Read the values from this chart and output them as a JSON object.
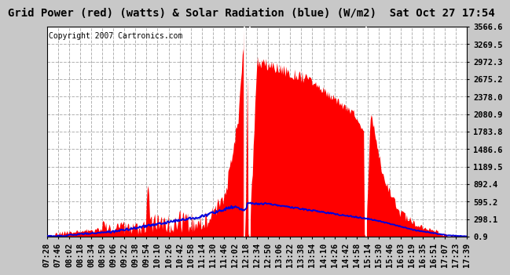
{
  "title": "Grid Power (red) (watts) & Solar Radiation (blue) (W/m2)  Sat Oct 27 17:54",
  "copyright": "Copyright 2007 Cartronics.com",
  "yticks": [
    0.9,
    298.1,
    595.2,
    892.4,
    1189.5,
    1486.6,
    1783.8,
    2080.9,
    2378.0,
    2675.2,
    2972.3,
    3269.5,
    3566.6
  ],
  "ymin": 0.9,
  "ymax": 3566.6,
  "bg_color": "#c8c8c8",
  "plot_bg_color": "#ffffff",
  "grid_color": "#aaaaaa",
  "red_color": "#ff0000",
  "blue_color": "#0000dd",
  "white_line_color": "#ffffff",
  "title_fontsize": 10,
  "copyright_fontsize": 7,
  "tick_fontsize": 7.5,
  "xtick_labels": [
    "07:28",
    "07:46",
    "08:02",
    "08:18",
    "08:34",
    "08:50",
    "09:06",
    "09:22",
    "09:38",
    "09:54",
    "10:10",
    "10:26",
    "10:42",
    "10:58",
    "11:14",
    "11:30",
    "11:46",
    "12:02",
    "12:18",
    "12:34",
    "12:50",
    "13:06",
    "13:22",
    "13:38",
    "13:54",
    "14:10",
    "14:26",
    "14:42",
    "14:58",
    "15:14",
    "15:30",
    "15:46",
    "16:03",
    "16:19",
    "16:35",
    "16:51",
    "17:07",
    "17:23",
    "17:39"
  ]
}
